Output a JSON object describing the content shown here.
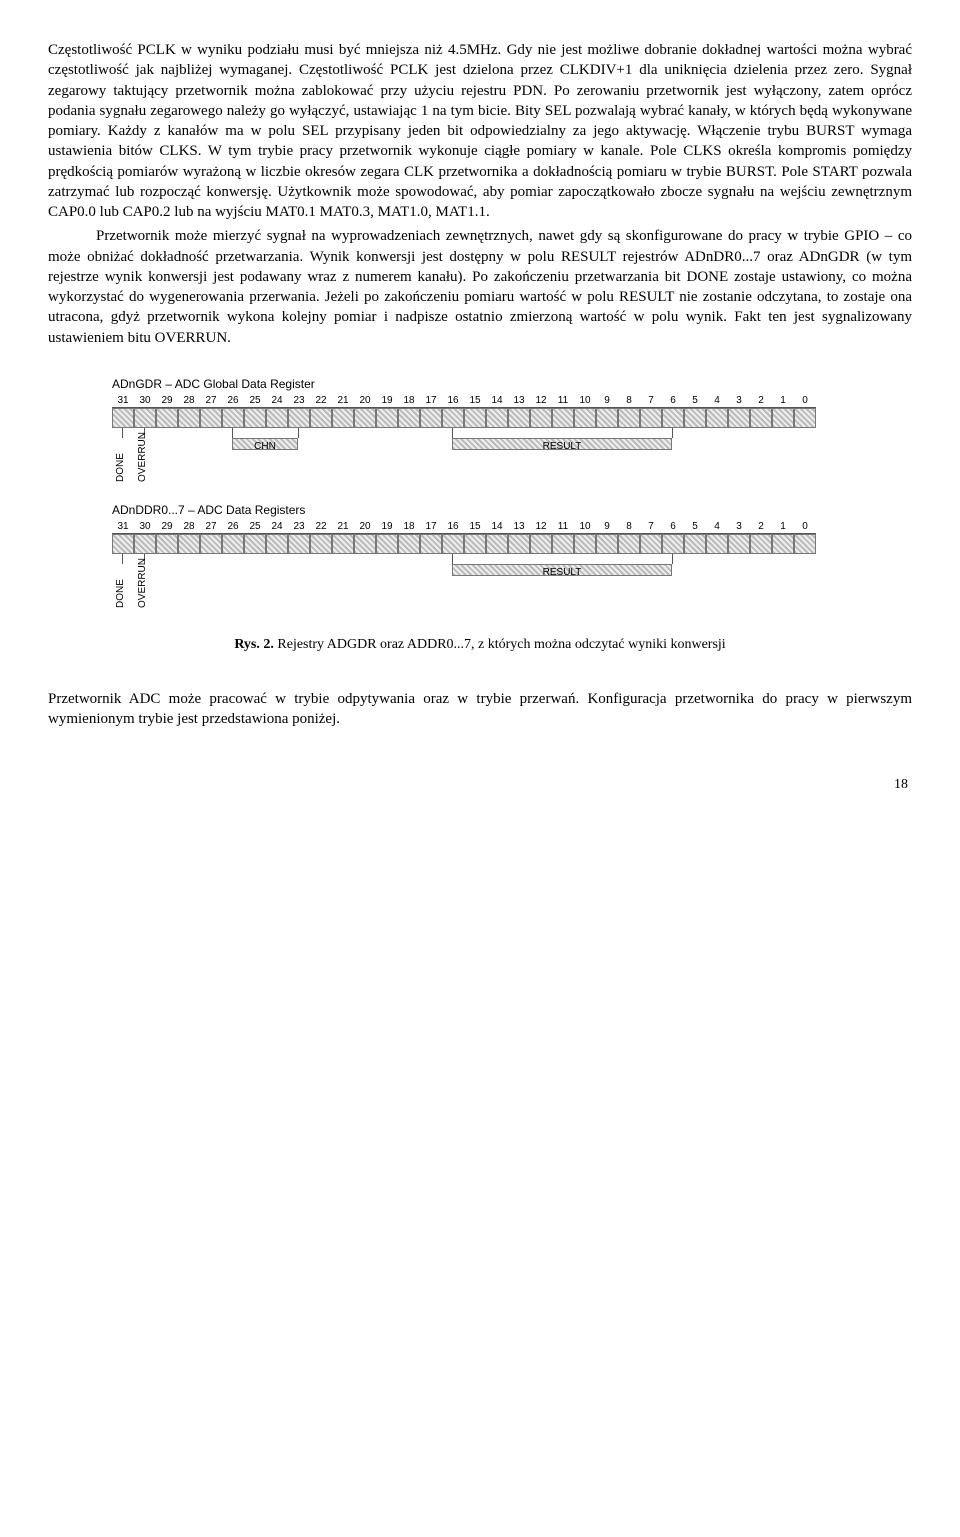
{
  "para1": "Częstotliwość PCLK w wyniku podziału musi być mniejsza niż 4.5MHz. Gdy nie jest możliwe dobranie dokładnej wartości można wybrać częstotliwość jak najbliżej wymaganej. Częstotliwość PCLK jest dzielona przez CLKDIV+1 dla uniknięcia dzielenia przez zero. Sygnał zegarowy taktujący przetwornik można zablokować przy użyciu rejestru PDN. Po zerowaniu przetwornik jest wyłączony, zatem oprócz podania sygnału zegarowego należy go wyłączyć, ustawiając 1 na tym bicie. Bity SEL pozwalają wybrać kanały, w których będą wykonywane pomiary. Każdy z kanałów ma w polu SEL przypisany jeden bit odpowiedzialny za jego aktywację. Włączenie trybu BURST wymaga ustawienia bitów CLKS. W tym trybie pracy przetwornik wykonuje ciągłe pomiary w kanale. Pole CLKS określa kompromis pomiędzy prędkością pomiarów wyrażoną w liczbie okresów zegara CLK przetwornika a dokładnością pomiaru w trybie BURST. Pole START pozwala zatrzymać lub rozpocząć konwersję. Użytkownik może spowodować, aby pomiar zapoczątkowało zbocze sygnału na wejściu zewnętrznym CAP0.0 lub CAP0.2 lub na wyjściu MAT0.1 MAT0.3, MAT1.0, MAT1.1.",
  "para2": "Przetwornik może mierzyć sygnał na wyprowadzeniach zewnętrznych, nawet gdy są skonfigurowane do pracy w trybie GPIO – co może obniżać dokładność przetwarzania. Wynik konwersji jest dostępny w polu RESULT rejestrów ADnDR0...7 oraz ADnGDR (w tym rejestrze wynik konwersji jest podawany wraz z numerem kanału). Po zakończeniu przetwarzania bit DONE zostaje ustawiony, co można wykorzystać do wygenerowania przerwania. Jeżeli po zakończeniu pomiaru wartość w polu RESULT nie zostanie odczytana, to zostaje ona utracona, gdyż przetwornik wykona kolejny pomiar i nadpisze ostatnio zmierzoną wartość w polu wynik. Fakt ten jest sygnalizowany ustawieniem bitu OVERRUN.",
  "reg1": {
    "title": "ADnGDR – ADC Global Data Register",
    "bits": [
      "31",
      "30",
      "29",
      "28",
      "27",
      "26",
      "25",
      "24",
      "23",
      "22",
      "21",
      "20",
      "19",
      "18",
      "17",
      "16",
      "15",
      "14",
      "13",
      "12",
      "11",
      "10",
      "9",
      "8",
      "7",
      "6",
      "5",
      "4",
      "3",
      "2",
      "1",
      "0"
    ],
    "field_chn": "CHN",
    "field_result": "RESULT",
    "vlabel_done": "DONE",
    "vlabel_overrun": "OVERRUN"
  },
  "reg2": {
    "title": "ADnDDR0...7 – ADC Data Registers",
    "bits": [
      "31",
      "30",
      "29",
      "28",
      "27",
      "26",
      "25",
      "24",
      "23",
      "22",
      "21",
      "20",
      "19",
      "18",
      "17",
      "16",
      "15",
      "14",
      "13",
      "12",
      "11",
      "10",
      "9",
      "8",
      "7",
      "6",
      "5",
      "4",
      "3",
      "2",
      "1",
      "0"
    ],
    "field_result": "RESULT",
    "vlabel_done": "DONE",
    "vlabel_overrun": "OVERRUN"
  },
  "caption_label": "Rys. 2.",
  "caption_text": " Rejestry ADGDR oraz ADDR0...7, z których można odczytać wyniki konwersji",
  "para3": "Przetwornik ADC może pracować w trybie odpytywania oraz w trybie przerwań. Konfiguracja przetwornika do pracy w pierwszym wymienionym trybie jest przedstawiona poniżej.",
  "page_number": "18",
  "colors": {
    "hatch_light": "#eeeeee",
    "hatch_dark": "#bbbbbb",
    "border": "#777777",
    "blank": "#f4f4f4"
  }
}
